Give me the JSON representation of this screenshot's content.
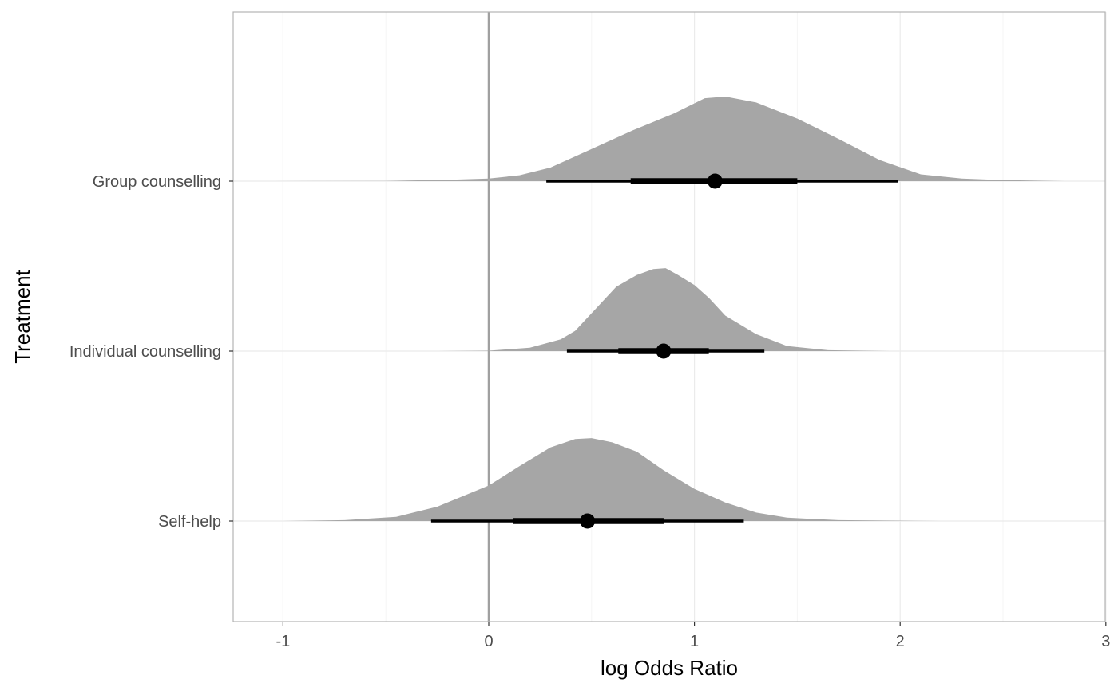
{
  "colors": {
    "background": "#ffffff",
    "panel_border": "#b3b3b3",
    "grid_major": "#ebebeb",
    "grid_minor": "#f5f5f5",
    "density_fill": "#a6a6a6",
    "interval": "#000000",
    "reference_line": "#a0a0a0",
    "tick_text": "#4d4d4d",
    "title_text": "#000000"
  },
  "chart_data": {
    "type": "density",
    "xlabel": "log Odds Ratio",
    "ylabel": "Treatment",
    "xlim": [
      -1.25,
      3.0
    ],
    "x_ticks": [
      -1,
      0,
      1,
      2,
      3
    ],
    "x_tick_labels": [
      "-1",
      "0",
      "1",
      "2",
      "3"
    ],
    "reference_line_x": 0,
    "grid": true,
    "categories": [
      "Group counselling",
      "Individual counselling",
      "Self-help"
    ],
    "series": [
      {
        "name": "Group counselling",
        "point": 1.1,
        "interval_66": [
          0.69,
          1.5
        ],
        "interval_95": [
          0.28,
          1.99
        ],
        "density": [
          [
            -1.05,
            0.0
          ],
          [
            -0.5,
            0.003
          ],
          [
            -0.2,
            0.015
          ],
          [
            0.0,
            0.03
          ],
          [
            0.15,
            0.07
          ],
          [
            0.3,
            0.16
          ],
          [
            0.5,
            0.38
          ],
          [
            0.7,
            0.6
          ],
          [
            0.9,
            0.8
          ],
          [
            1.05,
            0.98
          ],
          [
            1.15,
            1.0
          ],
          [
            1.3,
            0.93
          ],
          [
            1.5,
            0.74
          ],
          [
            1.7,
            0.5
          ],
          [
            1.9,
            0.25
          ],
          [
            2.1,
            0.08
          ],
          [
            2.3,
            0.03
          ],
          [
            2.5,
            0.012
          ],
          [
            2.8,
            0.0
          ]
        ]
      },
      {
        "name": "Individual counselling",
        "point": 0.85,
        "interval_66": [
          0.63,
          1.07
        ],
        "interval_95": [
          0.38,
          1.34
        ],
        "density": [
          [
            -0.25,
            0.0
          ],
          [
            0.0,
            0.005
          ],
          [
            0.2,
            0.04
          ],
          [
            0.35,
            0.14
          ],
          [
            0.42,
            0.24
          ],
          [
            0.52,
            0.5
          ],
          [
            0.62,
            0.76
          ],
          [
            0.72,
            0.9
          ],
          [
            0.8,
            0.97
          ],
          [
            0.86,
            0.98
          ],
          [
            0.92,
            0.9
          ],
          [
            1.0,
            0.78
          ],
          [
            1.07,
            0.63
          ],
          [
            1.15,
            0.42
          ],
          [
            1.3,
            0.2
          ],
          [
            1.45,
            0.06
          ],
          [
            1.65,
            0.01
          ],
          [
            1.95,
            0.0
          ]
        ]
      },
      {
        "name": "Self-help",
        "point": 0.48,
        "interval_66": [
          0.12,
          0.85
        ],
        "interval_95": [
          -0.28,
          1.24
        ],
        "density": [
          [
            -1.0,
            0.0
          ],
          [
            -0.7,
            0.01
          ],
          [
            -0.45,
            0.05
          ],
          [
            -0.25,
            0.17
          ],
          [
            0.0,
            0.42
          ],
          [
            0.15,
            0.65
          ],
          [
            0.3,
            0.87
          ],
          [
            0.42,
            0.97
          ],
          [
            0.5,
            0.98
          ],
          [
            0.6,
            0.93
          ],
          [
            0.72,
            0.82
          ],
          [
            0.85,
            0.6
          ],
          [
            1.0,
            0.38
          ],
          [
            1.15,
            0.22
          ],
          [
            1.3,
            0.1
          ],
          [
            1.45,
            0.04
          ],
          [
            1.7,
            0.01
          ],
          [
            2.2,
            0.0
          ]
        ]
      }
    ]
  }
}
